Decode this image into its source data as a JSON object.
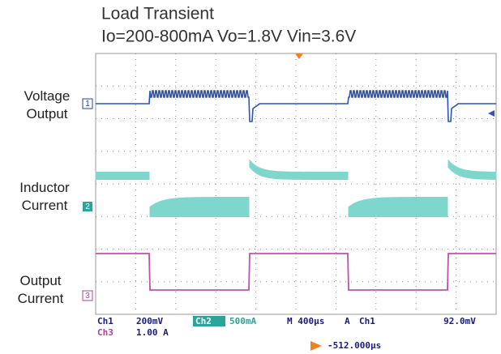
{
  "header": {
    "title": "Load Transient",
    "subtitle": "Io=200-800mA Vo=1.8V Vin=3.6V"
  },
  "channels": [
    {
      "label": "Voltage Output",
      "marker": "1"
    },
    {
      "label": "Inductor Current",
      "marker": "2"
    },
    {
      "label": "Output Current",
      "marker": "3"
    }
  ],
  "status": {
    "ch1": "Ch1",
    "ch1_scale": "200mV",
    "ch2": "Ch2",
    "ch2_scale": "500mA",
    "timebase": "M 400µs",
    "trigger": "A",
    "trigger_source": "Ch1",
    "trigger_level": "92.0mV",
    "ch3": "Ch3",
    "ch3_scale": "1.00 A",
    "offset": "-512.000µs"
  }
}
